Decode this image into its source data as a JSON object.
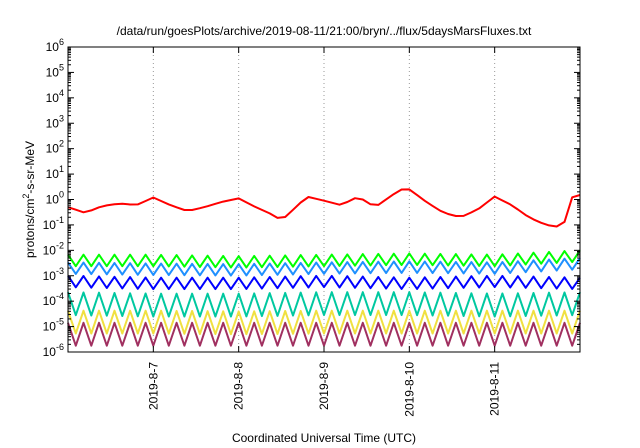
{
  "chart_data": {
    "type": "line",
    "title": "/data/run/goesPlots/archive/2019-08-11/21:00/bryn/../flux/5daysMarsFluxes.txt",
    "xlabel": "Coordinated Universal Time (UTC)",
    "ylabel_text": "protons/cm",
    "ylabel_sup": "2",
    "ylabel_rest": "-s-sr-MeV",
    "y_scale": "log",
    "ylim": [
      1e-06,
      1000000.0
    ],
    "xlim": [
      "2019-08-06 00:00",
      "2019-08-11 23:59"
    ],
    "grid": true,
    "legend": "none",
    "y_ticks": [
      {
        "exp": -6
      },
      {
        "exp": -5
      },
      {
        "exp": -4
      },
      {
        "exp": -3
      },
      {
        "exp": -2
      },
      {
        "exp": -1
      },
      {
        "exp": 0
      },
      {
        "exp": 1
      },
      {
        "exp": 2
      },
      {
        "exp": 3
      },
      {
        "exp": 4
      },
      {
        "exp": 5
      },
      {
        "exp": 6
      }
    ],
    "x_ticks": [
      {
        "label": "2019-8-7",
        "day": 1
      },
      {
        "label": "2019-8-8",
        "day": 2
      },
      {
        "label": "2019-8-9",
        "day": 3
      },
      {
        "label": "2019-8-10",
        "day": 4
      },
      {
        "label": "2019-8-11",
        "day": 5
      }
    ],
    "series": [
      {
        "color": "#ff0000",
        "x_days": [
          0.0,
          0.2,
          0.4,
          0.6,
          0.8,
          1.0,
          1.2,
          1.4,
          1.6,
          1.8,
          2.0,
          2.2,
          2.4,
          2.5,
          2.6,
          2.8,
          3.0,
          3.2,
          3.4,
          3.6,
          3.8,
          3.95,
          4.0,
          4.2,
          4.4,
          4.6,
          4.8,
          5.0,
          5.2,
          5.4,
          5.6,
          5.8,
          5.9,
          6.0
        ],
        "values": [
          0.5,
          0.3,
          0.55,
          0.7,
          0.6,
          1.2,
          0.6,
          0.35,
          0.5,
          0.8,
          1.1,
          0.5,
          0.25,
          0.15,
          0.3,
          1.3,
          0.9,
          0.6,
          1.3,
          0.5,
          1.5,
          3.0,
          2.5,
          0.8,
          0.3,
          0.2,
          0.4,
          1.3,
          0.6,
          0.2,
          0.1,
          0.08,
          1.2,
          1.5
        ]
      },
      {
        "color": "#00ff00",
        "x_days": [
          0.0,
          1.0,
          2.0,
          3.0,
          4.0,
          5.0,
          6.0
        ],
        "values": [
          0.004,
          0.004,
          0.0035,
          0.004,
          0.0045,
          0.004,
          0.006
        ]
      },
      {
        "color": "#1e90ff",
        "x_days": [
          0.0,
          1.0,
          2.0,
          3.0,
          4.0,
          5.0,
          6.0
        ],
        "values": [
          0.002,
          0.0018,
          0.0017,
          0.002,
          0.0022,
          0.002,
          0.003
        ]
      },
      {
        "color": "#0000ff",
        "x_days": [
          0.0,
          1.0,
          2.0,
          3.0,
          4.0,
          5.0,
          6.0
        ],
        "values": [
          0.0006,
          0.0005,
          0.0005,
          0.0006,
          0.0005,
          0.0006,
          0.0005
        ]
      },
      {
        "color": "#00c8a0",
        "x_days": [
          0.0,
          1.0,
          2.0,
          3.0,
          4.0,
          5.0,
          6.0
        ],
        "values": [
          8e-05,
          7e-05,
          7e-05,
          8e-05,
          8e-05,
          7e-05,
          8e-05
        ]
      },
      {
        "color": "#f0e040",
        "x_days": [
          0.0,
          1.0,
          2.0,
          3.0,
          4.0,
          5.0,
          6.0
        ],
        "values": [
          1.5e-05,
          1.5e-05,
          1.4e-05,
          1.5e-05,
          1.5e-05,
          1.5e-05,
          1.5e-05
        ]
      },
      {
        "color": "#a03060",
        "x_days": [
          0.0,
          1.0,
          2.0,
          3.0,
          4.0,
          5.0,
          6.0
        ],
        "values": [
          5e-06,
          5e-06,
          5e-06,
          5e-06,
          5e-06,
          5e-06,
          5e-06
        ]
      }
    ]
  }
}
